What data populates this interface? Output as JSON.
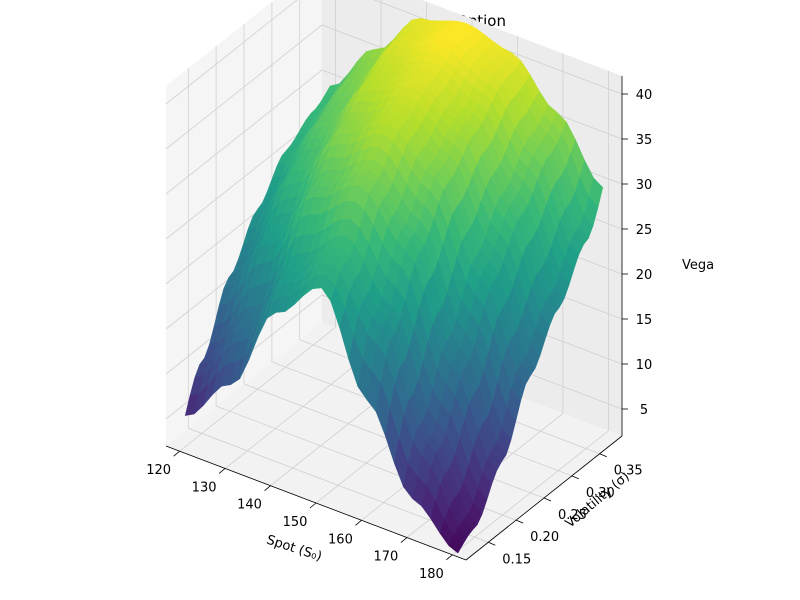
{
  "chart_data": {
    "type": "surface",
    "title": "Vega Surface for Call Option",
    "xlabel": "Spot (S₀)",
    "ylabel": "Volatility (σ)",
    "zlabel": "Vega",
    "colormap": "viridis",
    "xlim": [
      117,
      183
    ],
    "ylim": [
      0.11,
      0.39
    ],
    "zlim": [
      2,
      42
    ],
    "x_ticks": [
      {
        "value": 120,
        "label": "120"
      },
      {
        "value": 130,
        "label": "130"
      },
      {
        "value": 140,
        "label": "140"
      },
      {
        "value": 150,
        "label": "150"
      },
      {
        "value": 160,
        "label": "160"
      },
      {
        "value": 170,
        "label": "170"
      },
      {
        "value": 180,
        "label": "180"
      }
    ],
    "y_ticks": [
      {
        "value": 0.15,
        "label": "0.15"
      },
      {
        "value": 0.2,
        "label": "0.20"
      },
      {
        "value": 0.25,
        "label": "0.25"
      },
      {
        "value": 0.3,
        "label": "0.30"
      },
      {
        "value": 0.35,
        "label": "0.35"
      }
    ],
    "z_ticks": [
      {
        "value": 5,
        "label": "5"
      },
      {
        "value": 10,
        "label": "10"
      },
      {
        "value": 15,
        "label": "15"
      },
      {
        "value": 20,
        "label": "20"
      },
      {
        "value": 25,
        "label": "25"
      },
      {
        "value": 30,
        "label": "30"
      },
      {
        "value": 35,
        "label": "35"
      },
      {
        "value": 40,
        "label": "40"
      }
    ],
    "x": [
      120,
      130,
      140,
      150,
      160,
      170,
      180
    ],
    "y": [
      0.1,
      0.15,
      0.2,
      0.25,
      0.3,
      0.35,
      0.4
    ],
    "z": [
      [
        3,
        8,
        19,
        24,
        11,
        3,
        1
      ],
      [
        10,
        16,
        24,
        28,
        22,
        11,
        3
      ],
      [
        17,
        24,
        31,
        34,
        29,
        18,
        8
      ],
      [
        22,
        29,
        35,
        38,
        34,
        25,
        15
      ],
      [
        26,
        32,
        38,
        40,
        37,
        30,
        20
      ],
      [
        28,
        34,
        40,
        42,
        40,
        34,
        25
      ],
      [
        30,
        36,
        41,
        42,
        41,
        37,
        32
      ]
    ],
    "grid": true
  }
}
